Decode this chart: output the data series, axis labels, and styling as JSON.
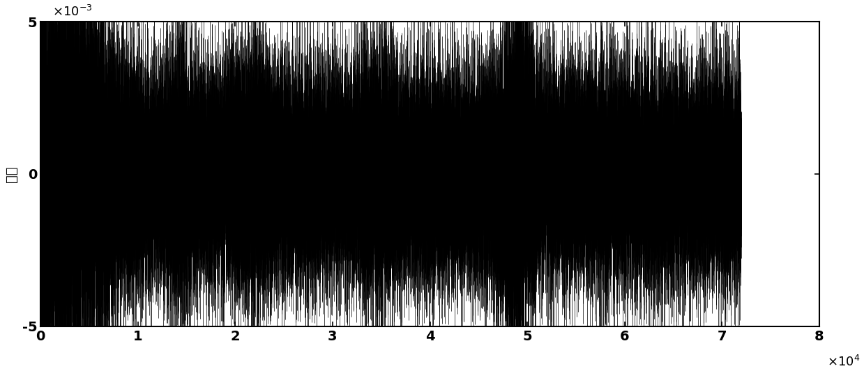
{
  "n_samples": 72000,
  "xlim": [
    0,
    80000
  ],
  "ylim": [
    -0.005,
    0.005
  ],
  "xticks": [
    0,
    10000,
    20000,
    30000,
    40000,
    50000,
    60000,
    70000,
    80000
  ],
  "xtick_labels": [
    "0",
    "1",
    "2",
    "3",
    "4",
    "5",
    "6",
    "7",
    "8"
  ],
  "yticks": [
    -0.005,
    0,
    0.005
  ],
  "ytick_labels": [
    "-5",
    "0",
    "5"
  ],
  "ylabel": "幅値",
  "line_color": "#000000",
  "background_color": "#ffffff",
  "seed": 42,
  "figsize": [
    12.39,
    5.33
  ],
  "dpi": 100
}
